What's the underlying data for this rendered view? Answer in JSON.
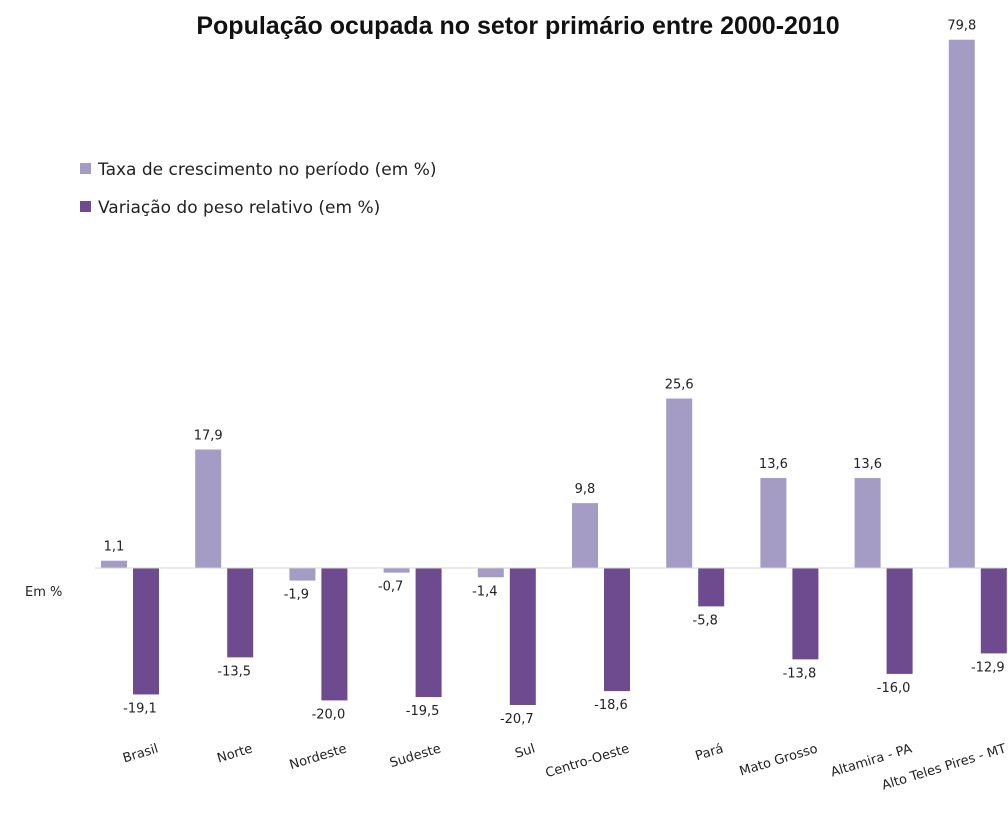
{
  "chart_data": {
    "type": "bar",
    "title": "População ocupada no setor primário entre 2000-2010",
    "unit_label": "Em %",
    "categories": [
      "Brasil",
      "Norte",
      "Nordeste",
      "Sudeste",
      "Sul",
      "Centro-Oeste",
      "Pará",
      "Mato Grosso",
      "Altamira - PA",
      "Alto Teles Pires - MT"
    ],
    "series": [
      {
        "name": "Taxa de crescimento no período (em %)",
        "color": "#a59cc5",
        "values": [
          1.1,
          17.9,
          -1.9,
          -0.7,
          -1.4,
          9.8,
          25.6,
          13.6,
          13.6,
          79.8
        ],
        "labels": [
          "1,1",
          "17,9",
          "-1,9",
          "-0,7",
          "-1,4",
          "9,8",
          "25,6",
          "13,6",
          "13,6",
          "79,8"
        ]
      },
      {
        "name": "Variação do peso relativo (em %)",
        "color": "#6e4b8e",
        "values": [
          -19.1,
          -13.5,
          -20.0,
          -19.5,
          -20.7,
          -18.6,
          -5.8,
          -13.8,
          -16.0,
          -12.9
        ],
        "labels": [
          "-19,1",
          "-13,5",
          "-20,0",
          "-19,5",
          "-20,7",
          "-18,6",
          "-5,8",
          "-13,8",
          "-16,0",
          "-12,9"
        ]
      }
    ],
    "legend_position": "top-left",
    "grid": false
  }
}
